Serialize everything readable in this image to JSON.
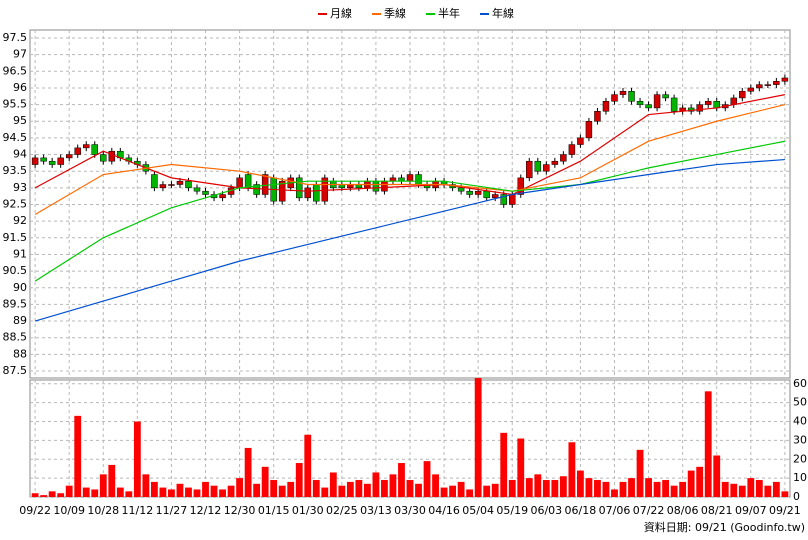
{
  "chart_data": [
    {
      "type": "candlestick",
      "legend": "top",
      "up_color": "#d40000",
      "down_color": "#00b400",
      "ylim": [
        87.29,
        97.74
      ],
      "yticks": [
        87.5,
        88,
        88.5,
        89,
        89.5,
        90,
        90.5,
        91,
        91.5,
        92,
        92.5,
        93,
        93.5,
        94,
        94.5,
        95,
        95.5,
        96,
        96.5,
        97,
        97.5
      ],
      "grid": true,
      "open": [
        93.7,
        93.9,
        93.8,
        93.7,
        93.9,
        94.0,
        94.2,
        94.3,
        94.0,
        93.8,
        94.1,
        93.9,
        93.8,
        93.7,
        93.4,
        93.0,
        93.1,
        93.1,
        93.2,
        93.0,
        92.9,
        92.8,
        92.7,
        92.8,
        93.0,
        93.4,
        93.1,
        92.8,
        93.3,
        92.6,
        93.0,
        93.3,
        92.7,
        93.1,
        92.6,
        93.2,
        93.1,
        93.0,
        93.1,
        93.0,
        93.2,
        92.9,
        93.2,
        93.3,
        93.2,
        93.4,
        93.1,
        93.0,
        93.2,
        93.1,
        93.0,
        92.9,
        92.8,
        92.9,
        92.7,
        92.8,
        92.5,
        92.8,
        93.3,
        93.8,
        93.5,
        93.7,
        93.8,
        94.0,
        94.3,
        94.5,
        95.0,
        95.3,
        95.6,
        95.8,
        95.9,
        95.6,
        95.5,
        95.4,
        95.8,
        95.7,
        95.3,
        95.4,
        95.3,
        95.5,
        95.6,
        95.4,
        95.5,
        95.7,
        95.9,
        96.0,
        96.1,
        96.1,
        96.2
      ],
      "high": [
        94.0,
        94.0,
        93.9,
        94.0,
        94.1,
        94.3,
        94.4,
        94.4,
        94.1,
        94.2,
        94.2,
        94.0,
        93.9,
        93.8,
        93.5,
        93.2,
        93.2,
        93.3,
        93.3,
        93.1,
        93.0,
        92.9,
        92.9,
        93.1,
        93.4,
        93.5,
        93.2,
        93.5,
        93.4,
        93.3,
        93.4,
        93.4,
        93.1,
        93.2,
        93.4,
        93.3,
        93.2,
        93.2,
        93.2,
        93.3,
        93.3,
        93.3,
        93.4,
        93.4,
        93.5,
        93.5,
        93.2,
        93.3,
        93.3,
        93.2,
        93.1,
        93.0,
        93.0,
        93.0,
        92.9,
        92.9,
        92.9,
        93.4,
        93.9,
        93.9,
        93.8,
        93.9,
        94.1,
        94.4,
        94.6,
        95.1,
        95.4,
        95.7,
        95.9,
        96.0,
        96.0,
        95.7,
        95.6,
        95.9,
        95.9,
        95.8,
        95.5,
        95.5,
        95.6,
        95.7,
        95.7,
        95.6,
        95.8,
        96.0,
        96.1,
        96.2,
        96.2,
        96.3,
        96.4
      ],
      "low": [
        93.6,
        93.7,
        93.6,
        93.6,
        93.8,
        93.9,
        94.1,
        93.9,
        93.7,
        93.7,
        93.8,
        93.7,
        93.6,
        93.4,
        92.9,
        92.9,
        93.0,
        93.0,
        92.9,
        92.8,
        92.7,
        92.6,
        92.6,
        92.7,
        92.9,
        92.9,
        92.7,
        92.7,
        92.5,
        92.5,
        92.9,
        92.6,
        92.6,
        92.5,
        92.5,
        92.9,
        92.9,
        92.9,
        92.9,
        92.9,
        92.8,
        92.8,
        93.1,
        93.1,
        93.1,
        93.0,
        92.9,
        92.9,
        93.0,
        92.9,
        92.8,
        92.7,
        92.7,
        92.6,
        92.6,
        92.4,
        92.4,
        92.7,
        93.2,
        93.4,
        93.4,
        93.6,
        93.7,
        93.9,
        94.2,
        94.4,
        94.9,
        95.2,
        95.5,
        95.7,
        95.5,
        95.4,
        95.3,
        95.3,
        95.6,
        95.2,
        95.2,
        95.2,
        95.2,
        95.4,
        95.3,
        95.3,
        95.4,
        95.6,
        95.8,
        95.9,
        96.0,
        96.0,
        96.1
      ],
      "close": [
        93.9,
        93.8,
        93.7,
        93.9,
        94.0,
        94.2,
        94.3,
        94.0,
        93.8,
        94.1,
        93.9,
        93.8,
        93.7,
        93.5,
        93.0,
        93.1,
        93.1,
        93.2,
        93.0,
        92.9,
        92.8,
        92.7,
        92.8,
        93.0,
        93.3,
        93.0,
        92.8,
        93.4,
        92.6,
        93.2,
        93.3,
        92.7,
        93.0,
        92.6,
        93.3,
        93.0,
        93.0,
        93.1,
        93.0,
        93.2,
        92.9,
        93.2,
        93.3,
        93.2,
        93.4,
        93.1,
        93.0,
        93.2,
        93.1,
        93.0,
        92.9,
        92.8,
        92.9,
        92.7,
        92.8,
        92.5,
        92.8,
        93.3,
        93.8,
        93.5,
        93.7,
        93.8,
        94.0,
        94.3,
        94.5,
        95.0,
        95.3,
        95.6,
        95.8,
        95.9,
        95.6,
        95.5,
        95.4,
        95.8,
        95.7,
        95.3,
        95.4,
        95.3,
        95.5,
        95.6,
        95.4,
        95.5,
        95.7,
        95.9,
        96.0,
        96.1,
        96.1,
        96.2,
        96.3
      ],
      "series": [
        {
          "name": "月線",
          "color": "#e00000",
          "x": [
            0,
            8,
            16,
            24,
            32,
            40,
            48,
            56,
            64,
            72,
            80,
            88
          ],
          "values": [
            93.0,
            94.1,
            93.3,
            93.0,
            92.9,
            93.0,
            93.1,
            92.8,
            93.8,
            95.2,
            95.4,
            95.8
          ]
        },
        {
          "name": "季線",
          "color": "#ff6a00",
          "x": [
            0,
            8,
            16,
            24,
            32,
            40,
            48,
            56,
            64,
            72,
            80,
            88
          ],
          "values": [
            92.2,
            93.4,
            93.7,
            93.5,
            93.1,
            93.1,
            93.1,
            92.9,
            93.3,
            94.4,
            95.0,
            95.5
          ]
        },
        {
          "name": "半年",
          "color": "#00c800",
          "x": [
            0,
            8,
            16,
            24,
            32,
            40,
            48,
            56,
            64,
            72,
            80,
            88
          ],
          "values": [
            90.2,
            91.5,
            92.4,
            93.0,
            93.2,
            93.2,
            93.2,
            92.9,
            93.1,
            93.6,
            94.0,
            94.4
          ]
        },
        {
          "name": "年線",
          "color": "#0050d0",
          "x": [
            0,
            8,
            16,
            24,
            32,
            40,
            48,
            56,
            64,
            72,
            80,
            88
          ],
          "values": [
            89.0,
            89.6,
            90.2,
            90.8,
            91.3,
            91.8,
            92.3,
            92.8,
            93.1,
            93.4,
            93.7,
            93.85
          ]
        }
      ]
    },
    {
      "type": "bar",
      "color": "#ff0000",
      "xlim": [
        -0.6,
        88.6
      ],
      "xticks": [
        {
          "value": 0,
          "label": "09/22"
        },
        {
          "value": 4,
          "label": "10/09"
        },
        {
          "value": 8,
          "label": "10/28"
        },
        {
          "value": 12,
          "label": "11/12"
        },
        {
          "value": 16,
          "label": "11/27"
        },
        {
          "value": 20,
          "label": "12/12"
        },
        {
          "value": 24,
          "label": "12/30"
        },
        {
          "value": 28,
          "label": "01/15"
        },
        {
          "value": 32,
          "label": "01/30"
        },
        {
          "value": 36,
          "label": "02/25"
        },
        {
          "value": 40,
          "label": "03/13"
        },
        {
          "value": 44,
          "label": "03/30"
        },
        {
          "value": 48,
          "label": "04/16"
        },
        {
          "value": 52,
          "label": "05/04"
        },
        {
          "value": 56,
          "label": "05/19"
        },
        {
          "value": 60,
          "label": "06/03"
        },
        {
          "value": 64,
          "label": "06/18"
        },
        {
          "value": 68,
          "label": "07/06"
        },
        {
          "value": 72,
          "label": "07/22"
        },
        {
          "value": 76,
          "label": "08/06"
        },
        {
          "value": 80,
          "label": "08/21"
        },
        {
          "value": 84,
          "label": "09/07"
        },
        {
          "value": 88,
          "label": "09/21"
        }
      ],
      "ylim": [
        0,
        62
      ],
      "yticks": [
        0,
        10,
        20,
        30,
        40,
        50,
        60
      ],
      "values": [
        2,
        1,
        3,
        2,
        6,
        43,
        5,
        4,
        12,
        17,
        5,
        3,
        40,
        12,
        8,
        5,
        4,
        7,
        5,
        4,
        8,
        6,
        4,
        6,
        10,
        26,
        7,
        16,
        9,
        6,
        8,
        18,
        33,
        9,
        5,
        13,
        6,
        8,
        9,
        7,
        13,
        9,
        12,
        18,
        9,
        7,
        19,
        12,
        5,
        6,
        8,
        4,
        63,
        6,
        7,
        34,
        9,
        31,
        10,
        12,
        9,
        9,
        11,
        29,
        14,
        10,
        9,
        8,
        4,
        8,
        10,
        25,
        10,
        8,
        9,
        6,
        8,
        14,
        16,
        56,
        22,
        8,
        7,
        6,
        10,
        9,
        6,
        8,
        3
      ],
      "source": "資料日期: 09/21  (Goodinfo.tw)"
    }
  ]
}
